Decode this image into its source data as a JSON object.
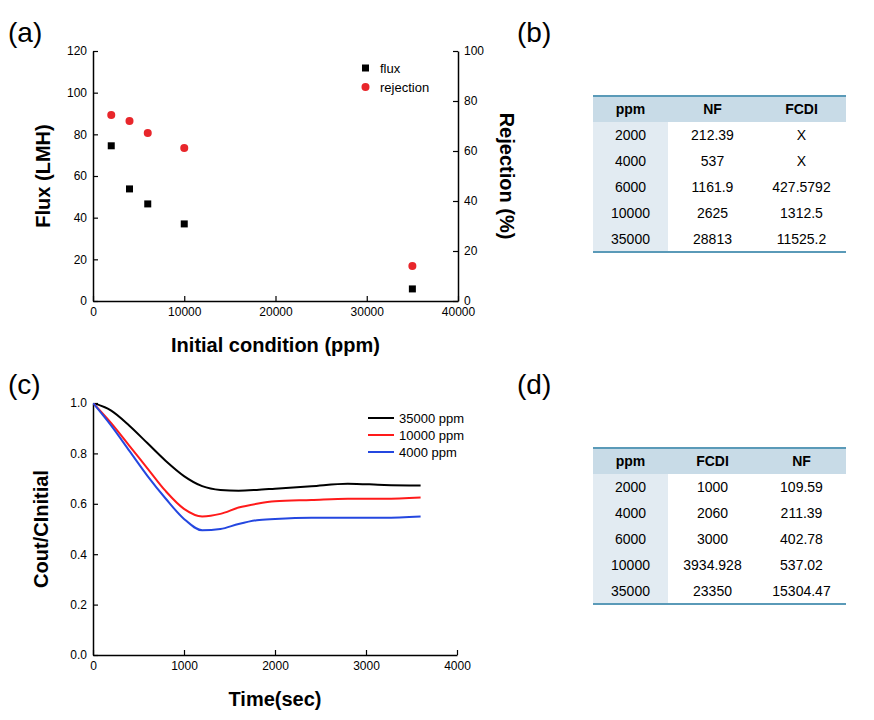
{
  "chart_data": [
    {
      "type": "scatter",
      "title": "(a)",
      "xlabel": "Initial condition (ppm)",
      "ylabel": "Flux (LMH)",
      "y2label": "Rejection (%)",
      "x": [
        2000,
        4000,
        6000,
        10000,
        35000
      ],
      "series": [
        {
          "name": "flux",
          "color": "#000000",
          "marker": "square",
          "values": [
            74.5,
            53.8,
            46.6,
            37,
            5.8
          ]
        },
        {
          "name": "rejection",
          "color": "#e8262b",
          "marker": "circle",
          "axis": "y2",
          "values": [
            74.4,
            72,
            67.2,
            61.2,
            14
          ]
        }
      ],
      "xlim": [
        0,
        40000
      ],
      "xticks": [
        0,
        10000,
        20000,
        30000,
        40000
      ],
      "ylim": [
        0,
        120
      ],
      "yticks": [
        0,
        20,
        40,
        60,
        80,
        100,
        120
      ],
      "y2lim": [
        0,
        100
      ],
      "y2ticks": [
        0,
        20,
        40,
        60,
        80,
        100
      ],
      "legend": "upper right"
    },
    {
      "type": "table",
      "title": "(b)",
      "columns": [
        "ppm",
        "NF",
        "FCDI"
      ],
      "rows": [
        [
          2000,
          212.39,
          "X"
        ],
        [
          4000,
          537,
          "X"
        ],
        [
          6000,
          1161.9,
          427.5792
        ],
        [
          10000,
          2625,
          1312.5
        ],
        [
          35000,
          28813,
          11525.2
        ]
      ]
    },
    {
      "type": "line",
      "title": "(c)",
      "xlabel": "Time(sec)",
      "ylabel": "Cout/CInitial",
      "x": [
        0,
        200,
        400,
        600,
        800,
        1000,
        1200,
        1400,
        1600,
        1800,
        2000,
        2400,
        2800,
        3200,
        3600
      ],
      "series": [
        {
          "name": "35000 ppm",
          "color": "#000000",
          "values": [
            1.0,
            0.97,
            0.91,
            0.84,
            0.77,
            0.71,
            0.67,
            0.655,
            0.652,
            0.655,
            0.66,
            0.67,
            0.68,
            0.675,
            0.673
          ]
        },
        {
          "name": "10000 ppm",
          "color": "#ff1a1a",
          "values": [
            1.0,
            0.92,
            0.83,
            0.74,
            0.65,
            0.58,
            0.55,
            0.56,
            0.585,
            0.6,
            0.61,
            0.615,
            0.62,
            0.62,
            0.625
          ]
        },
        {
          "name": "4000 ppm",
          "color": "#2447e0",
          "values": [
            1.0,
            0.91,
            0.81,
            0.71,
            0.62,
            0.54,
            0.495,
            0.5,
            0.52,
            0.535,
            0.54,
            0.545,
            0.545,
            0.545,
            0.55
          ]
        }
      ],
      "xlim": [
        0,
        4000
      ],
      "xticks": [
        0,
        1000,
        2000,
        3000,
        4000
      ],
      "ylim": [
        0,
        1.0
      ],
      "yticks": [
        {
          "value": 0,
          "label": "0.0"
        },
        0.2,
        0.4,
        0.6,
        0.8,
        {
          "value": 1.0,
          "label": "1.0"
        }
      ],
      "legend": "upper right"
    },
    {
      "type": "table",
      "title": "(d)",
      "columns": [
        "ppm",
        "FCDI",
        "NF"
      ],
      "rows": [
        [
          2000,
          1000,
          109.59
        ],
        [
          4000,
          2060,
          211.39
        ],
        [
          6000,
          3000,
          402.78
        ],
        [
          10000,
          3934.928,
          537.02
        ],
        [
          35000,
          23350,
          15304.47
        ]
      ]
    }
  ]
}
